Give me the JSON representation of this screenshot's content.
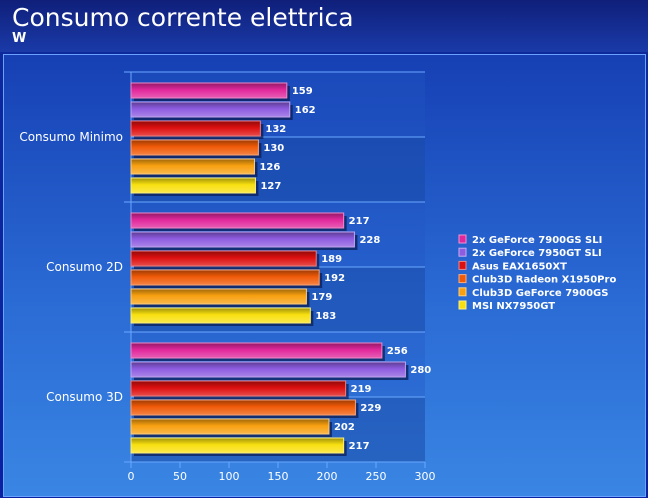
{
  "header": {
    "title": "Consumo corrente elettrica",
    "subtitle": "W"
  },
  "chart_data": {
    "type": "bar",
    "orientation": "horizontal",
    "title": "Consumo corrente elettrica",
    "unit": "W",
    "categories": [
      "Consumo Minimo",
      "Consumo 2D",
      "Consumo 3D"
    ],
    "series": [
      {
        "name": "2x GeForce 7900GS SLI",
        "values": [
          159,
          217,
          256
        ],
        "color": "#e0289c"
      },
      {
        "name": "2x GeForce 7950GT SLI",
        "values": [
          162,
          228,
          280
        ],
        "color": "#8e5ce0"
      },
      {
        "name": "Asus EAX1650XT",
        "values": [
          132,
          189,
          219
        ],
        "color": "#dd1010"
      },
      {
        "name": "Club3D Radeon X1950Pro",
        "values": [
          130,
          192,
          229
        ],
        "color": "#f05a08"
      },
      {
        "name": "Club3D GeForce 7900GS",
        "values": [
          126,
          179,
          202
        ],
        "color": "#f8a010"
      },
      {
        "name": "MSI NX7950GT",
        "values": [
          127,
          183,
          217
        ],
        "color": "#f8e010"
      }
    ],
    "xlim": [
      0,
      300
    ],
    "xticks": [
      0,
      50,
      100,
      150,
      200,
      250,
      300
    ],
    "legend_position": "right",
    "grid": false
  }
}
